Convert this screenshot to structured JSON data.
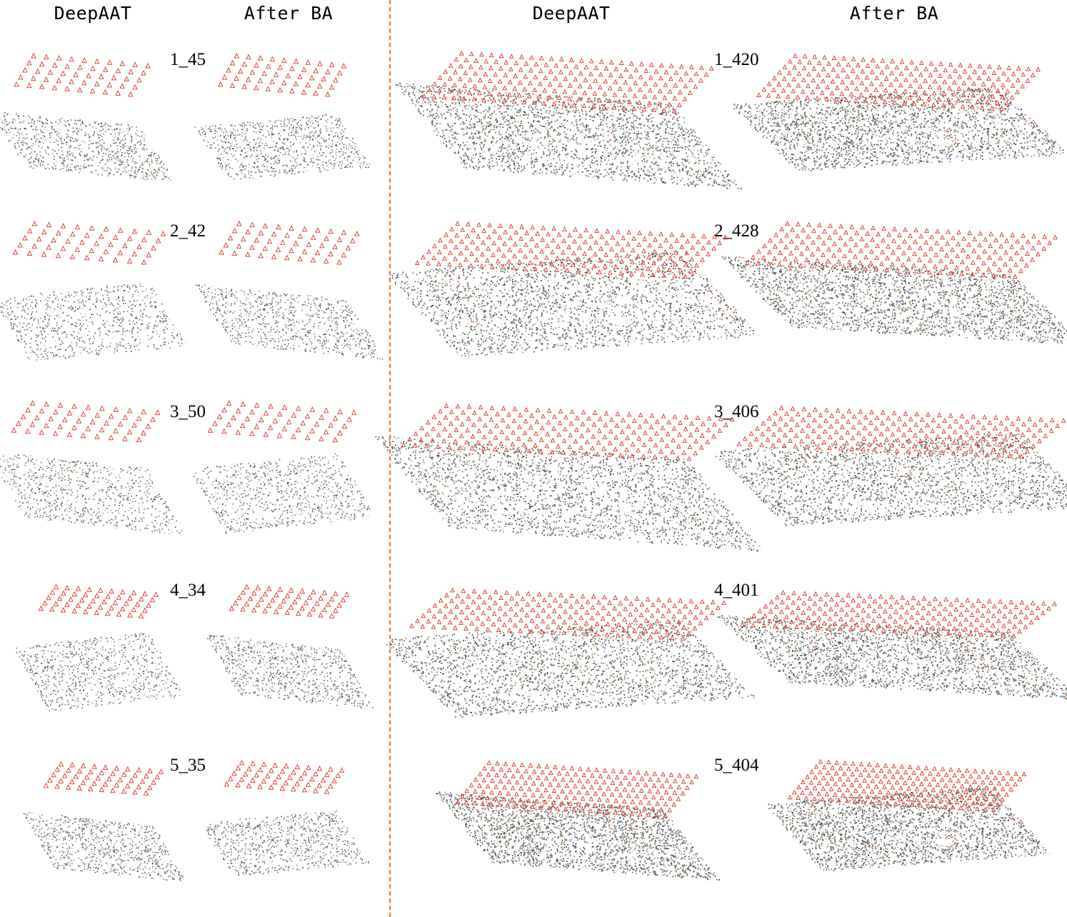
{
  "headers": {
    "left_deepaat": "DeepAAT",
    "left_after_ba": "After BA",
    "right_deepaat": "DeepAAT",
    "right_after_ba": "After BA"
  },
  "rows": [
    {
      "left_label": "1_45",
      "right_label": "1_420"
    },
    {
      "left_label": "2_42",
      "right_label": "2_428"
    },
    {
      "left_label": "3_50",
      "right_label": "3_406"
    },
    {
      "left_label": "4_34",
      "right_label": "4_401"
    },
    {
      "left_label": "5_35",
      "right_label": "5_404"
    }
  ],
  "colors": {
    "camera_marker": "#e0483a",
    "divider": "#e07a2a",
    "point_cloud_palette": [
      "#5a5a4e",
      "#8a7f6e",
      "#b07060",
      "#6f7d5a",
      "#9aa0a6",
      "#4f6a9a",
      "#d8d4cc",
      "#3e4a3a"
    ]
  }
}
